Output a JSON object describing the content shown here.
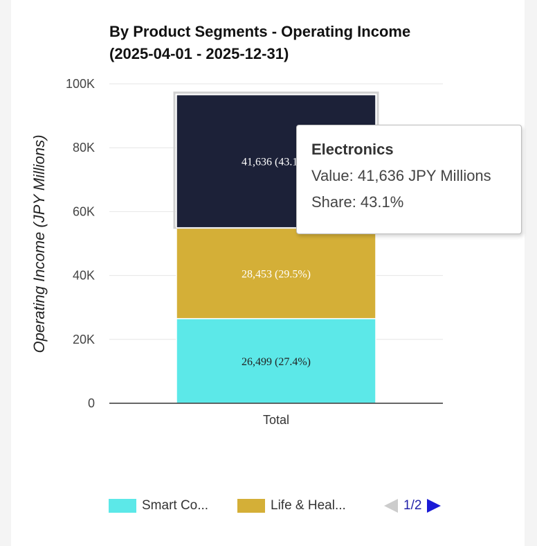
{
  "chart_data": {
    "type": "bar",
    "stacked": true,
    "title": "By Product Segments - Operating Income",
    "subtitle": "(2025-04-01 - 2025-12-31)",
    "categories": [
      "Total"
    ],
    "ylabel": "Operating Income (JPY Millions)",
    "xlabel": "",
    "ylim": [
      0,
      100000
    ],
    "y_ticks": [
      {
        "value": 0,
        "label": "0"
      },
      {
        "value": 20000,
        "label": "20K"
      },
      {
        "value": 40000,
        "label": "40K"
      },
      {
        "value": 60000,
        "label": "60K"
      },
      {
        "value": 80000,
        "label": "80K"
      },
      {
        "value": 100000,
        "label": "100K"
      }
    ],
    "series": [
      {
        "name": "Smart Co...",
        "values": [
          26499
        ],
        "label": "26,499 (27.4%)",
        "color": "#5ce8e8"
      },
      {
        "name": "Life & Heal...",
        "values": [
          28453
        ],
        "label": "28,453 (29.5%)",
        "color": "#d4af37"
      },
      {
        "name": "Electronics",
        "values": [
          41636
        ],
        "label": "41,636 (43.1%)",
        "color": "#1c2138"
      }
    ],
    "grid": true,
    "legend": {
      "position": "bottom",
      "visible_items": [
        {
          "label": "Smart Co...",
          "color": "#5ce8e8"
        },
        {
          "label": "Life & Heal...",
          "color": "#d4af37"
        }
      ],
      "page": "1/2"
    },
    "tooltip": {
      "title": "Electronics",
      "value_line": "Value: 41,636 JPY Millions",
      "share_line": "Share: 43.1%"
    }
  }
}
